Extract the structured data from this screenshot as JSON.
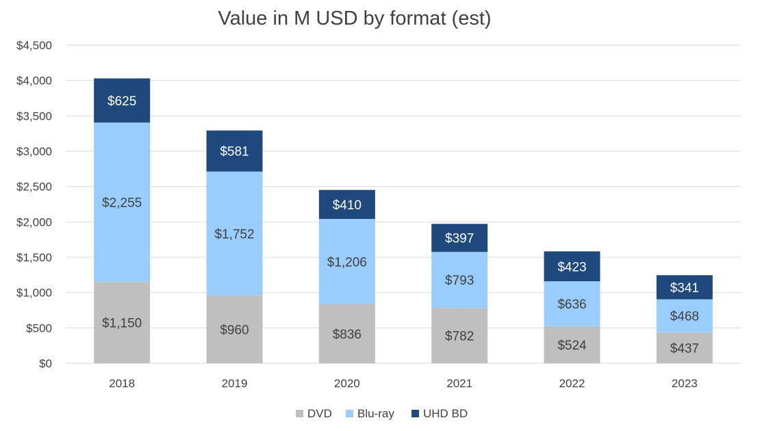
{
  "chart_data": {
    "type": "bar",
    "stacked": true,
    "title": "Value in M USD by format (est)",
    "xlabel": "",
    "ylabel": "",
    "categories": [
      "2018",
      "2019",
      "2020",
      "2021",
      "2022",
      "2023"
    ],
    "ylim": [
      0,
      4500
    ],
    "ytick_step": 500,
    "ytick_labels": [
      "$0",
      "$500",
      "$1,000",
      "$1,500",
      "$2,000",
      "$2,500",
      "$3,000",
      "$3,500",
      "$4,000",
      "$4,500"
    ],
    "grid": true,
    "legend_position": "bottom",
    "series": [
      {
        "name": "DVD",
        "color": "#bfbfbf",
        "label_color": "#404040",
        "values": [
          1150,
          960,
          836,
          782,
          524,
          437
        ],
        "labels": [
          "$1,150",
          "$960",
          "$836",
          "$782",
          "$524",
          "$437"
        ]
      },
      {
        "name": "Blu-ray",
        "color": "#99ccff",
        "label_color": "#404040",
        "values": [
          2255,
          1752,
          1206,
          793,
          636,
          468
        ],
        "labels": [
          "$2,255",
          "$1,752",
          "$1,206",
          "$793",
          "$636",
          "$468"
        ]
      },
      {
        "name": "UHD BD",
        "color": "#1f497d",
        "label_color": "#ffffff",
        "values": [
          625,
          581,
          410,
          397,
          423,
          341
        ],
        "labels": [
          "$625",
          "$581",
          "$410",
          "$397",
          "$423",
          "$341"
        ]
      }
    ]
  }
}
